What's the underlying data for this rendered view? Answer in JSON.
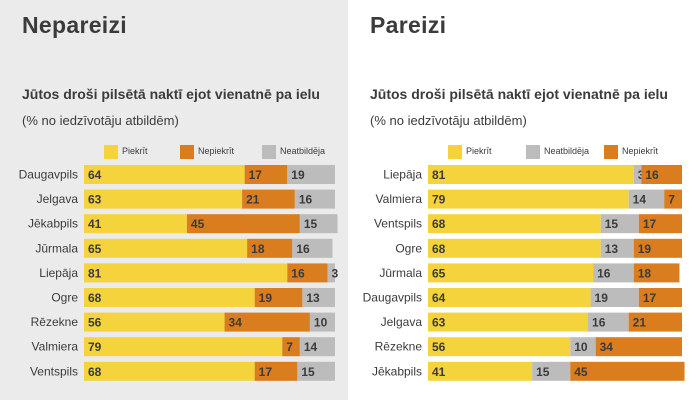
{
  "colors": {
    "piekrit": "#f5d33d",
    "nepiekrit": "#d97d1e",
    "neatbildeja": "#bcbcbc",
    "text": "#3b3b3b"
  },
  "chart_data": [
    {
      "type": "bar",
      "orientation": "horizontal",
      "stacked": true,
      "heading": "Nepareizi",
      "title": "Jūtos droši pilsētā naktī ejot vienatnē pa ielu",
      "subtitle": "(% no iedzīvotāju atbildēm)",
      "xlim": [
        0,
        100
      ],
      "legend_position": "top",
      "categories": [
        "Daugavpils",
        "Jelgava",
        "Jēkabpils",
        "Jūrmala",
        "Liepāja",
        "Ogre",
        "Rēzekne",
        "Valmiera",
        "Ventspils"
      ],
      "series": [
        {
          "name": "Piekrīt",
          "key": "piekrit",
          "values": [
            64,
            63,
            41,
            65,
            81,
            68,
            56,
            79,
            68
          ]
        },
        {
          "name": "Nepiekrīt",
          "key": "nepiekrit",
          "values": [
            17,
            21,
            45,
            18,
            16,
            19,
            34,
            7,
            17
          ]
        },
        {
          "name": "Neatbildēja",
          "key": "neatbildeja",
          "values": [
            19,
            16,
            15,
            16,
            3,
            13,
            10,
            14,
            15
          ]
        }
      ]
    },
    {
      "type": "bar",
      "orientation": "horizontal",
      "stacked": true,
      "heading": "Pareizi",
      "title": "Jūtos droši pilsētā naktī ejot vienatnē pa ielu",
      "subtitle": "(% no iedzīvotāju atbildēm)",
      "xlim": [
        0,
        100
      ],
      "legend_position": "top",
      "categories": [
        "Liepāja",
        "Valmiera",
        "Ventspils",
        "Ogre",
        "Jūrmala",
        "Daugavpils",
        "Jelgava",
        "Rēzekne",
        "Jēkabpils"
      ],
      "series": [
        {
          "name": "Piekrīt",
          "key": "piekrit",
          "values": [
            81,
            79,
            68,
            68,
            65,
            64,
            63,
            56,
            41
          ]
        },
        {
          "name": "Neatbildēja",
          "key": "neatbildeja",
          "values": [
            3,
            14,
            15,
            13,
            16,
            19,
            16,
            10,
            15
          ]
        },
        {
          "name": "Nepiekrīt",
          "key": "nepiekrit",
          "values": [
            16,
            7,
            17,
            19,
            18,
            17,
            21,
            34,
            45
          ]
        }
      ]
    }
  ]
}
